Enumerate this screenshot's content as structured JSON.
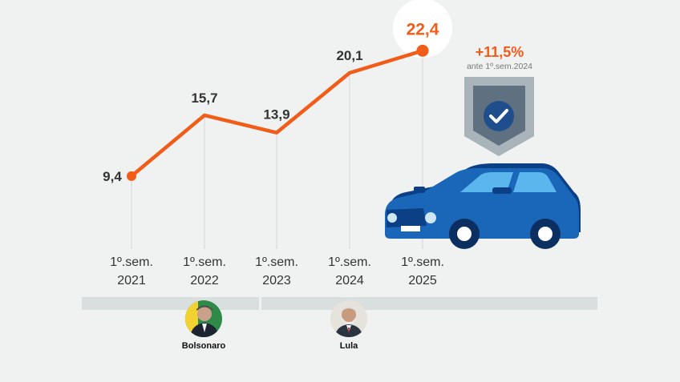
{
  "chart_data": {
    "type": "line",
    "categories": [
      "1º.sem.\n2021",
      "1º.sem.\n2022",
      "1º.sem.\n2023",
      "1º.sem.\n2024",
      "1º.sem.\n2025"
    ],
    "category_lines": [
      [
        "1º.sem.",
        "2021"
      ],
      [
        "1º.sem.",
        "2022"
      ],
      [
        "1º.sem.",
        "2023"
      ],
      [
        "1º.sem.",
        "2024"
      ],
      [
        "1º.sem.",
        "2025"
      ]
    ],
    "values": [
      9.4,
      15.7,
      13.9,
      20.1,
      22.4
    ],
    "value_labels": [
      "9,4",
      "15,7",
      "13,9",
      "20,1",
      "22,4"
    ],
    "highlight_index": 4,
    "ylim": [
      0,
      26
    ],
    "title": "",
    "xlabel": "",
    "ylabel": "",
    "annotation": {
      "delta": "+11,5%",
      "subtitle": "ante 1º.sem.2024"
    }
  },
  "eras": [
    {
      "name": "Bolsonaro",
      "from_index": 0,
      "to_index": 1
    },
    {
      "name": "Lula",
      "from_index": 2,
      "to_index": 4
    }
  ],
  "colors": {
    "line": "#f25c19",
    "value_text": "#333333",
    "gridline": "#d4d7d8",
    "background": "#f0f1f1",
    "car_body": "#1a66b8",
    "car_dark": "#0b3f86",
    "shield": "#a9b3ba",
    "shield_inner": "#5f7180",
    "badge": "#1f4e8c"
  },
  "icons": {
    "car": "car-icon",
    "shield": "shield-check-icon",
    "bolsonaro": "bolsonaro-portrait",
    "lula": "lula-portrait"
  }
}
